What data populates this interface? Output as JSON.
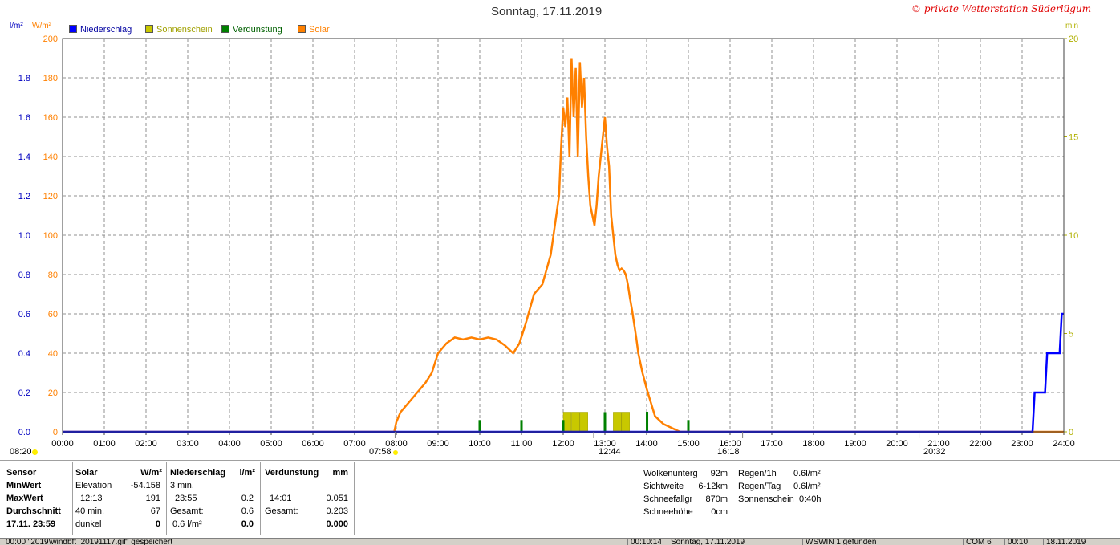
{
  "header": {
    "title": "Sonntag, 17.11.2019",
    "copyright": "© private Wetterstation Süderlügum",
    "left_unit_blue": "l/m²",
    "left_unit_orange": "W/m²",
    "right_unit": "min"
  },
  "legend": [
    {
      "label": "Niederschlag",
      "color": "#0000ff"
    },
    {
      "label": "Sonnenschein",
      "color": "#c8c800"
    },
    {
      "label": "Verdunstung",
      "color": "#008000"
    },
    {
      "label": "Solar",
      "color": "#ff8000"
    }
  ],
  "markers": {
    "sunrise_left": "08:20",
    "sunrise": "07:58",
    "max": "12:44",
    "sunset": "16:18",
    "moon": "20:32"
  },
  "chart_data": {
    "type": "line",
    "title": "Sonntag, 17.11.2019",
    "x_ticks": [
      "00:00",
      "01:00",
      "02:00",
      "03:00",
      "04:00",
      "05:00",
      "06:00",
      "07:00",
      "08:00",
      "09:00",
      "10:00",
      "11:00",
      "12:00",
      "13:00",
      "14:00",
      "15:00",
      "16:00",
      "17:00",
      "18:00",
      "19:00",
      "20:00",
      "21:00",
      "22:00",
      "23:00",
      "24:00"
    ],
    "xlim_hours": [
      0,
      24
    ],
    "y_left_solar": {
      "unit": "W/m²",
      "ylim": [
        0,
        200
      ],
      "ticks": [
        "0",
        "20",
        "40",
        "60",
        "80",
        "100",
        "120",
        "140",
        "160",
        "180",
        "200"
      ]
    },
    "y_left_precip": {
      "unit": "l/m²",
      "ylim": [
        0,
        2.0
      ],
      "ticks": [
        "0.0",
        "0.2",
        "0.4",
        "0.6",
        "0.8",
        "1.0",
        "1.2",
        "1.4",
        "1.6",
        "1.8"
      ]
    },
    "y_right_sunshine": {
      "unit": "min",
      "ylim": [
        0,
        20
      ],
      "ticks": [
        "0",
        "5",
        "10",
        "15",
        "20"
      ]
    },
    "grid": true,
    "series": [
      {
        "name": "Solar",
        "color": "#ff8000",
        "x_hours": [
          0,
          7.95,
          8.0,
          8.1,
          8.3,
          8.5,
          8.7,
          8.85,
          9.0,
          9.2,
          9.4,
          9.6,
          9.8,
          10.0,
          10.2,
          10.4,
          10.6,
          10.8,
          10.95,
          11.1,
          11.3,
          11.5,
          11.7,
          11.8,
          11.9,
          11.95,
          12.0,
          12.05,
          12.1,
          12.15,
          12.2,
          12.25,
          12.3,
          12.35,
          12.4,
          12.45,
          12.5,
          12.55,
          12.6,
          12.65,
          12.7,
          12.75,
          12.8,
          12.85,
          12.9,
          12.95,
          13.0,
          13.05,
          13.1,
          13.15,
          13.2,
          13.25,
          13.3,
          13.35,
          13.4,
          13.45,
          13.5,
          13.55,
          13.6,
          13.65,
          13.7,
          13.75,
          13.8,
          13.9,
          14.0,
          14.1,
          14.2,
          14.4,
          14.6,
          14.8,
          15.0,
          15.2,
          15.4,
          15.6,
          15.8,
          16.0,
          16.1,
          16.2,
          16.3,
          24.0
        ],
        "values": [
          0,
          0,
          5,
          10,
          15,
          20,
          25,
          30,
          40,
          45,
          48,
          47,
          48,
          47,
          48,
          47,
          44,
          40,
          45,
          55,
          70,
          75,
          90,
          105,
          120,
          145,
          165,
          155,
          170,
          140,
          190,
          160,
          185,
          140,
          188,
          165,
          180,
          150,
          130,
          115,
          110,
          105,
          115,
          130,
          140,
          150,
          160,
          145,
          135,
          110,
          100,
          90,
          85,
          82,
          83,
          82,
          80,
          75,
          68,
          62,
          55,
          48,
          40,
          30,
          22,
          15,
          8,
          4,
          2,
          0,
          0,
          0,
          0,
          0,
          0,
          0,
          0,
          0,
          0,
          0
        ]
      },
      {
        "name": "Niederschlag",
        "color": "#0000ff",
        "x_hours": [
          0,
          22.7,
          23.25,
          23.3,
          23.55,
          23.6,
          23.9,
          23.95,
          24.0
        ],
        "values": [
          0,
          0,
          0,
          0.2,
          0.2,
          0.4,
          0.4,
          0.6,
          0.6
        ]
      },
      {
        "name": "Sonnenschein",
        "color": "#c8c800",
        "bars": [
          {
            "x_hours": 12.0,
            "minutes": 1
          },
          {
            "x_hours": 12.2,
            "minutes": 1
          },
          {
            "x_hours": 12.4,
            "minutes": 1
          },
          {
            "x_hours": 13.2,
            "minutes": 1
          },
          {
            "x_hours": 13.4,
            "minutes": 1
          }
        ]
      },
      {
        "name": "Verdunstung",
        "color": "#008000",
        "spikes": [
          {
            "x_hours": 10.0,
            "value": 0.03
          },
          {
            "x_hours": 11.0,
            "value": 0.03
          },
          {
            "x_hours": 12.0,
            "value": 0.03
          },
          {
            "x_hours": 13.0,
            "value": 0.05
          },
          {
            "x_hours": 14.01,
            "value": 0.051
          },
          {
            "x_hours": 15.0,
            "value": 0.03
          }
        ]
      }
    ]
  },
  "table": {
    "sensor": {
      "header": "Sensor",
      "rows": [
        "MinWert",
        "MaxWert",
        "Durchschnitt",
        "17.11. 23:59"
      ]
    },
    "solar": {
      "header": "Solar",
      "unit": "W/m²",
      "rows": [
        [
          "Elevation",
          "-54.158"
        ],
        [
          "12:13",
          "191"
        ],
        [
          "40 min.",
          "67"
        ],
        [
          "dunkel",
          "0"
        ]
      ]
    },
    "precip": {
      "header": "Niederschlag",
      "unit": "l/m²",
      "rows": [
        [
          "3 min.",
          ""
        ],
        [
          "23:55",
          "0.2"
        ],
        [
          "Gesamt:",
          "0.6"
        ],
        [
          "0.6 l/m²",
          "0.0"
        ]
      ]
    },
    "evap": {
      "header": "Verdunstung",
      "unit": "mm",
      "rows": [
        [
          "14:01",
          "0.051"
        ],
        [
          "Gesamt:",
          "0.203"
        ],
        [
          "",
          "0.000"
        ]
      ]
    },
    "weather": [
      [
        "Wolkenunterg",
        "92m"
      ],
      [
        "Sichtweite",
        "6-12km"
      ],
      [
        "Schneefallgr",
        "870m"
      ],
      [
        "Schneehöhe",
        "0cm"
      ]
    ],
    "rain": [
      [
        "Regen/1h",
        "0.6l/m²"
      ],
      [
        "Regen/Tag",
        "0.6l/m²"
      ],
      [
        "Sonnenschein",
        "0:40h"
      ]
    ]
  },
  "statusbar": {
    "file": "00:00  \"2019\\windbft_20191117.gif\"  gespeichert",
    "time": "00:10:14",
    "date": "Sonntag, 17.11.2019",
    "found": "WSWIN 1 gefunden",
    "com": "COM 6",
    "clock": "00:10",
    "day": "18.11.2019"
  }
}
